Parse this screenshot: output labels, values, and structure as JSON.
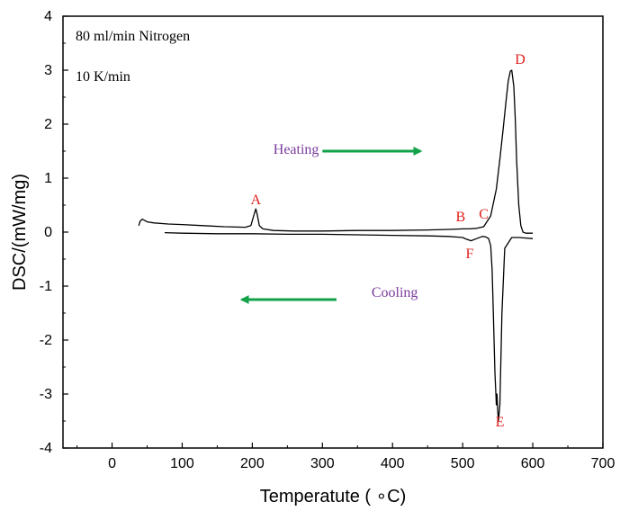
{
  "chart_data": {
    "type": "line",
    "title": "",
    "xlabel": "Temperatute ( ∘C)",
    "ylabel": "DSC/(mW/mg)",
    "xlim": [
      -70,
      700
    ],
    "ylim": [
      -4,
      4
    ],
    "xticks": [
      0,
      100,
      200,
      300,
      400,
      500,
      600,
      700
    ],
    "yticks": [
      -4,
      -3,
      -2,
      -1,
      0,
      1,
      2,
      3,
      4
    ],
    "grid": false,
    "legend": "none",
    "line_color": "#000000",
    "conditions": [
      "80 ml/min Nitrogen",
      "10 K/min"
    ],
    "series": [
      {
        "x": [
          38,
          40,
          43,
          46,
          50,
          60,
          80,
          100,
          130,
          160,
          190,
          198,
          202,
          205,
          207,
          210,
          215,
          230,
          260,
          300,
          350,
          400,
          450,
          480,
          500,
          510,
          520,
          530,
          540,
          548,
          553,
          558,
          562,
          565,
          568,
          570,
          573,
          575,
          577,
          580,
          583,
          586,
          590,
          600
        ],
        "y": [
          0.12,
          0.2,
          0.24,
          0.22,
          0.19,
          0.17,
          0.15,
          0.14,
          0.12,
          0.1,
          0.09,
          0.12,
          0.3,
          0.43,
          0.33,
          0.12,
          0.06,
          0.03,
          0.02,
          0.02,
          0.03,
          0.03,
          0.04,
          0.05,
          0.06,
          0.06,
          0.07,
          0.1,
          0.3,
          0.8,
          1.35,
          1.95,
          2.45,
          2.8,
          2.98,
          3.0,
          2.7,
          2.1,
          1.3,
          0.5,
          0.12,
          0.0,
          -0.02,
          -0.02
        ]
      },
      {
        "x": [
          600,
          590,
          580,
          570,
          560,
          556,
          553,
          551,
          550,
          549,
          548,
          546,
          544,
          542,
          540,
          537,
          533,
          528,
          520,
          512,
          505,
          500,
          480,
          450,
          400,
          350,
          300,
          250,
          200,
          150,
          100,
          75
        ],
        "y": [
          -0.12,
          -0.11,
          -0.1,
          -0.1,
          -0.3,
          -1.5,
          -3.2,
          -3.5,
          -3.3,
          -3.0,
          -3.2,
          -2.6,
          -1.6,
          -0.7,
          -0.25,
          -0.12,
          -0.09,
          -0.08,
          -0.12,
          -0.16,
          -0.13,
          -0.1,
          -0.08,
          -0.07,
          -0.06,
          -0.05,
          -0.04,
          -0.04,
          -0.03,
          -0.03,
          -0.02,
          -0.01
        ]
      }
    ],
    "point_labels": [
      {
        "text": "A",
        "x": 205,
        "y": 0.62
      },
      {
        "text": "B",
        "x": 497,
        "y": 0.3
      },
      {
        "text": "C",
        "x": 530,
        "y": 0.35
      },
      {
        "text": "D",
        "x": 582,
        "y": 3.22
      },
      {
        "text": "E",
        "x": 553,
        "y": -3.5
      },
      {
        "text": "F",
        "x": 510,
        "y": -0.38
      }
    ],
    "annotations": [
      {
        "text": "Heating",
        "x": 230,
        "y": 1.55,
        "arrow": {
          "x1": 300,
          "x2": 440,
          "y": 1.5,
          "direction": "right",
          "color": "#12a24a"
        }
      },
      {
        "text": "Cooling",
        "x": 370,
        "y": -1.1,
        "arrow": {
          "x1": 320,
          "x2": 185,
          "y": -1.25,
          "direction": "left",
          "color": "#12a24a"
        }
      }
    ]
  }
}
